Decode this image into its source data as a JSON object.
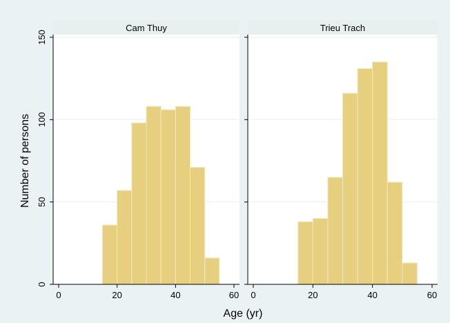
{
  "chart_data": {
    "type": "bar",
    "xlabel": "Age (yr)",
    "ylabel": "Number of persons",
    "xlim": [
      0,
      60
    ],
    "ylim": [
      0,
      150
    ],
    "x_ticks": [
      0,
      20,
      40,
      60
    ],
    "y_ticks": [
      0,
      50,
      100,
      150
    ],
    "bin_width": 5,
    "grid": true,
    "colors": {
      "bar_fill": "#e6cf7f",
      "bar_edge": "#f3e7c2",
      "panel_bg": "#ffffff",
      "strip_bg": "#e8efef",
      "outer_bg": "#eaf2f3",
      "grid": "#e9efef",
      "axis": "#000000"
    },
    "panels": [
      {
        "title": "Cam Thuy",
        "bins": [
          {
            "x0": 15,
            "x1": 20,
            "value": 36
          },
          {
            "x0": 20,
            "x1": 25,
            "value": 57
          },
          {
            "x0": 25,
            "x1": 30,
            "value": 98
          },
          {
            "x0": 30,
            "x1": 35,
            "value": 108
          },
          {
            "x0": 35,
            "x1": 40,
            "value": 106
          },
          {
            "x0": 40,
            "x1": 45,
            "value": 108
          },
          {
            "x0": 45,
            "x1": 50,
            "value": 71
          },
          {
            "x0": 50,
            "x1": 55,
            "value": 16
          }
        ]
      },
      {
        "title": "Trieu Trach",
        "bins": [
          {
            "x0": 15,
            "x1": 20,
            "value": 38
          },
          {
            "x0": 20,
            "x1": 25,
            "value": 40
          },
          {
            "x0": 25,
            "x1": 30,
            "value": 65
          },
          {
            "x0": 30,
            "x1": 35,
            "value": 116
          },
          {
            "x0": 35,
            "x1": 40,
            "value": 131
          },
          {
            "x0": 40,
            "x1": 45,
            "value": 135
          },
          {
            "x0": 45,
            "x1": 50,
            "value": 62
          },
          {
            "x0": 50,
            "x1": 55,
            "value": 13
          }
        ]
      }
    ]
  }
}
